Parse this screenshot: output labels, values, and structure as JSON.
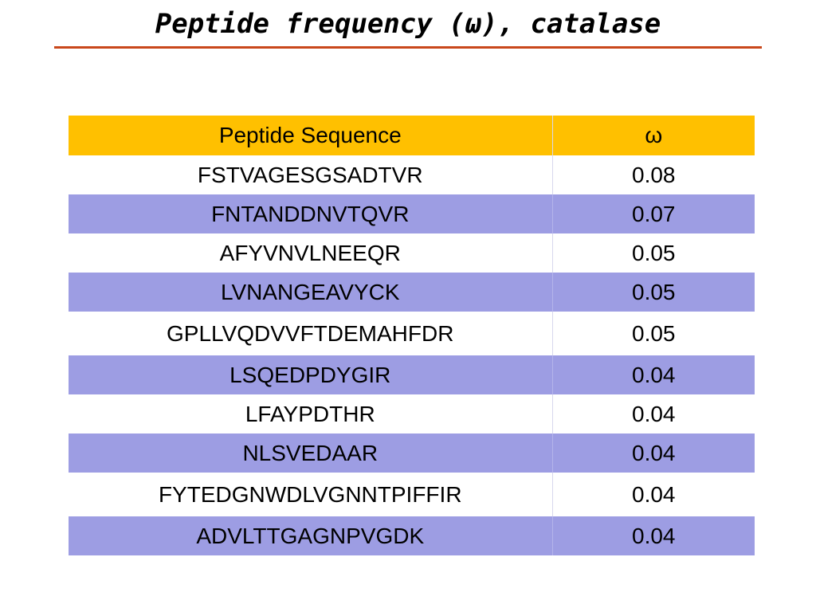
{
  "title": "Peptide frequency (ω), catalase",
  "colors": {
    "title_rule": "#c9471b",
    "header_bg": "#ffc000",
    "alt_row_bg": "#9d9de3",
    "row_bg": "#ffffff"
  },
  "table": {
    "headers": [
      "Peptide Sequence",
      "ω"
    ],
    "rows": [
      {
        "sequence": "FSTVAGESGSADTVR",
        "omega": "0.08"
      },
      {
        "sequence": "FNTANDDNVTQVR",
        "omega": "0.07"
      },
      {
        "sequence": "AFYVNVLNEEQR",
        "omega": "0.05"
      },
      {
        "sequence": "LVNANGEAVYCK",
        "omega": "0.05"
      },
      {
        "sequence": "GPLLVQDVVFTDEMAHFDR",
        "omega": "0.05"
      },
      {
        "sequence": "LSQEDPDYGIR",
        "omega": "0.04"
      },
      {
        "sequence": "LFAYPDTHR",
        "omega": "0.04"
      },
      {
        "sequence": "NLSVEDAAR",
        "omega": "0.04"
      },
      {
        "sequence": "FYTEDGNWDLVGNNTPIFFIR",
        "omega": "0.04"
      },
      {
        "sequence": "ADVLTTGAGNPVGDK",
        "omega": "0.04"
      }
    ]
  }
}
